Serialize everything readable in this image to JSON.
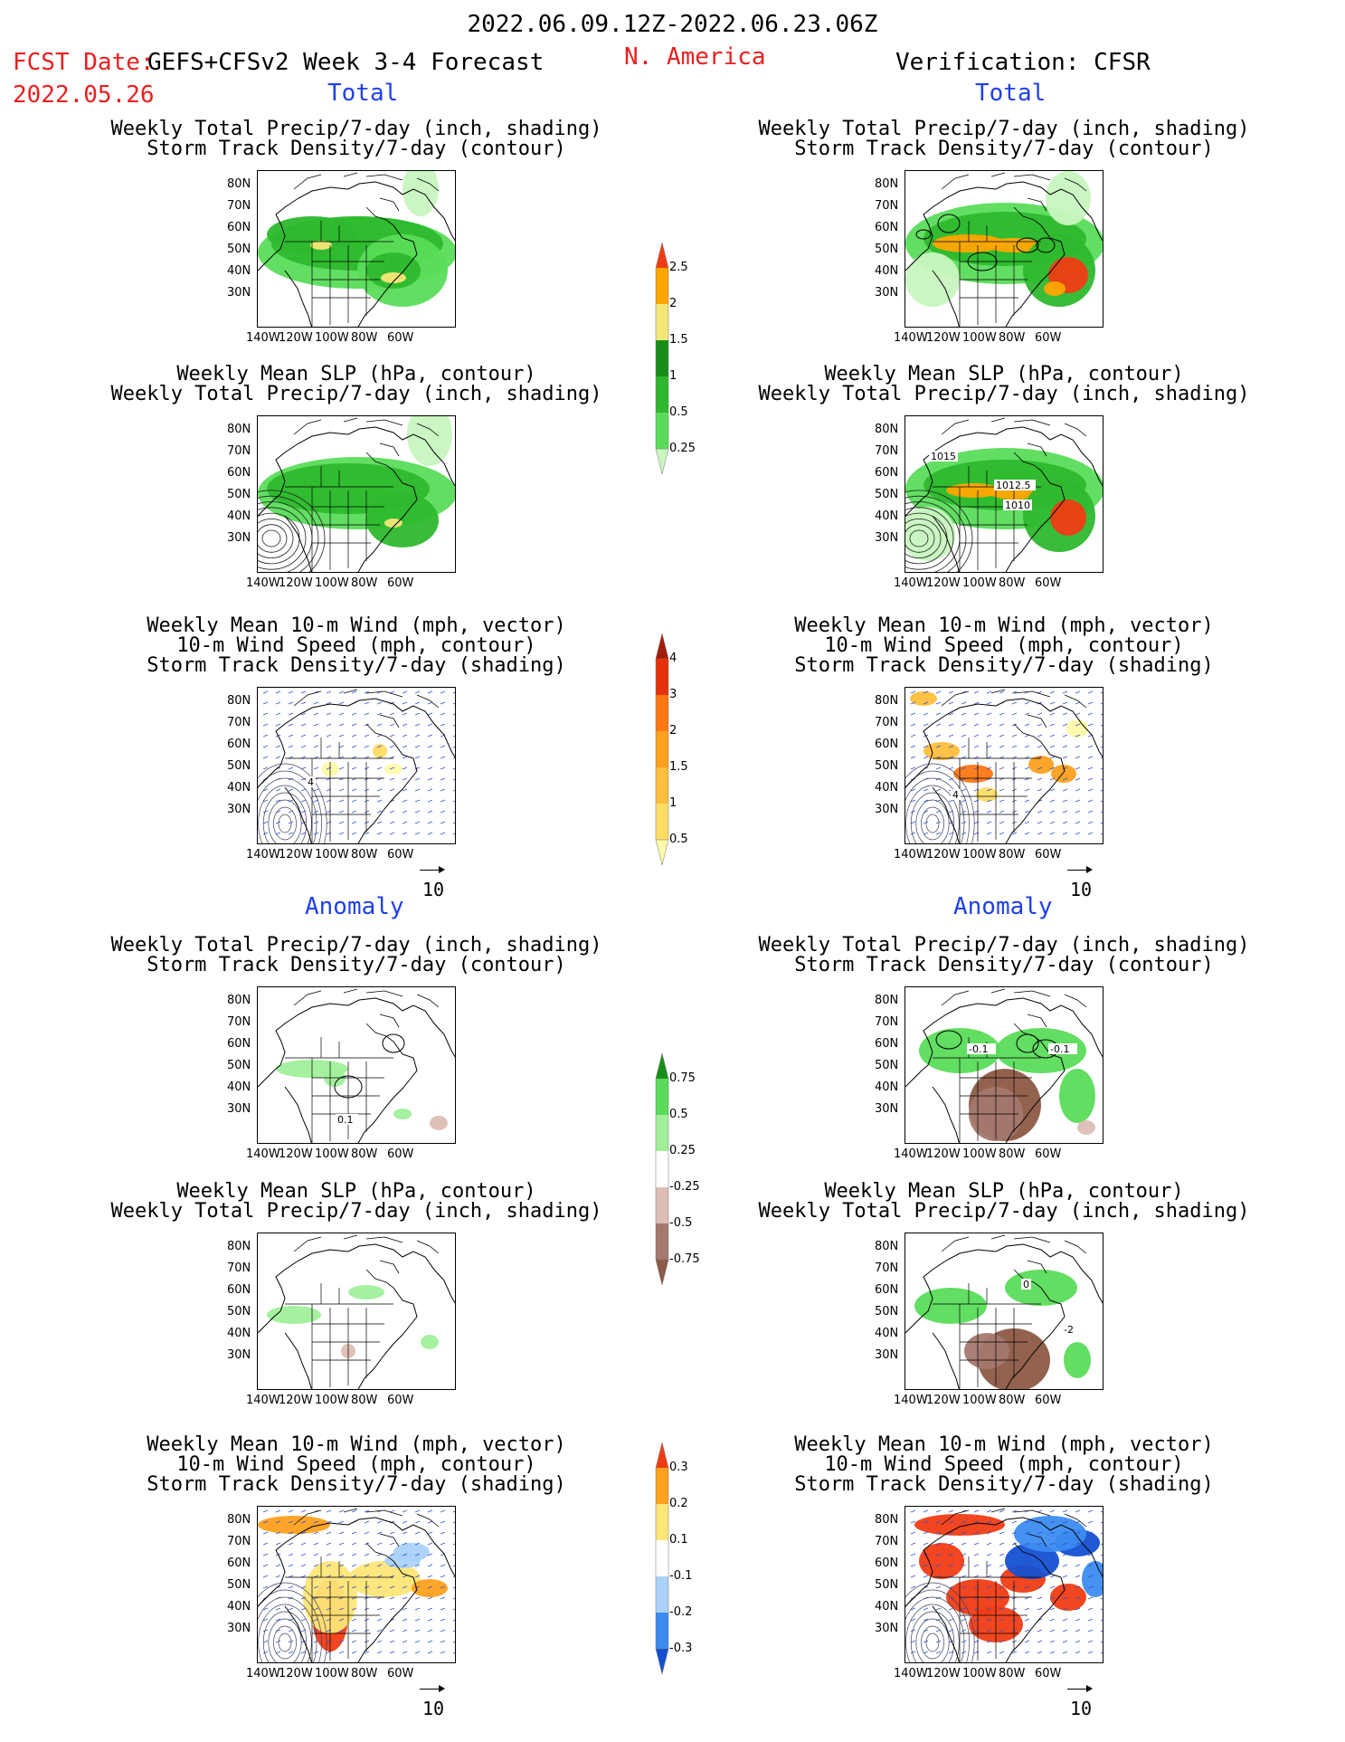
{
  "header": {
    "valid_period": "2022.06.09.12Z-2022.06.23.06Z",
    "fcst_label": "FCST Date:",
    "model": "GEFS+CFSv2 Week 3-4 Forecast",
    "fcst_date": "2022.05.26",
    "region": "N. America",
    "verification": "Verification: CFSR"
  },
  "sections": {
    "total": "Total",
    "anomaly": "Anomaly"
  },
  "titles": {
    "precip_track": [
      "Weekly Total Precip/7-day (inch, shading)",
      "Storm Track Density/7-day (contour)"
    ],
    "slp_precip": [
      "Weekly Mean SLP (hPa, contour)",
      "Weekly Total Precip/7-day (inch, shading)"
    ],
    "wind_track": [
      "Weekly Mean 10-m Wind (mph, vector)",
      "10-m Wind Speed (mph, contour)",
      "Storm Track Density/7-day (shading)"
    ]
  },
  "axes": {
    "lat_ticks": [
      "80N",
      "70N",
      "60N",
      "50N",
      "40N",
      "30N"
    ],
    "lon_ticks": [
      "140W",
      "120W",
      "100W",
      "80W",
      "60W"
    ]
  },
  "vector_ref": "10",
  "contour_labels": {
    "slp_obs": [
      "1015",
      "1012.5",
      "1010"
    ],
    "anom_fcst_track": "0.1",
    "anom_obs_track": [
      "-0.1",
      "-0.1"
    ],
    "anom_obs_slp": [
      "0",
      "-2"
    ],
    "wind_fcst": "4",
    "wind_obs": "4"
  },
  "colors": {
    "precip": [
      "#c8f5c0",
      "#5adc5a",
      "#2eb82e",
      "#178f17",
      "#f5e678",
      "#ffa500",
      "#f03c14"
    ],
    "track": [
      "#fffaaa",
      "#ffdc64",
      "#ffbe3c",
      "#ffa01e",
      "#ff7814",
      "#e6320a",
      "#a01e0a"
    ],
    "precip_anom": [
      "#8c5a46",
      "#a5786e",
      "#dcbeb4",
      "#ffffff",
      "#a0f09a",
      "#5adc5a",
      "#178f17"
    ],
    "track_anom": [
      "#1450d2",
      "#3c8cf0",
      "#aad2fa",
      "#ffffff",
      "#ffe678",
      "#ffa01e",
      "#f03c14"
    ]
  },
  "chart_data": [
    {
      "type": "heatmap",
      "colorbar": "precip_total",
      "unit": "inch",
      "levels": [
        0.25,
        0.5,
        1,
        1.5,
        2,
        2.5
      ],
      "tick_labels": [
        "0.25",
        "0.5",
        "1",
        "1.5",
        "2",
        "2.5"
      ]
    },
    {
      "type": "heatmap",
      "colorbar": "track_total",
      "levels": [
        0.5,
        1,
        1.5,
        2,
        3,
        4
      ],
      "tick_labels": [
        "0.5",
        "1",
        "1.5",
        "2",
        "3",
        "4"
      ]
    },
    {
      "type": "heatmap",
      "colorbar": "precip_anomaly",
      "unit": "inch",
      "levels": [
        -0.75,
        -0.5,
        -0.25,
        0.25,
        0.5,
        0.75
      ],
      "tick_labels": [
        "-0.75",
        "-0.5",
        "-0.25",
        "0.25",
        "0.5",
        "0.75"
      ]
    },
    {
      "type": "heatmap",
      "colorbar": "track_anomaly",
      "levels": [
        -0.3,
        -0.2,
        -0.1,
        0.1,
        0.2,
        0.3
      ],
      "tick_labels": [
        "-0.3",
        "-0.2",
        "-0.1",
        "0.1",
        "0.2",
        "0.3"
      ]
    }
  ]
}
